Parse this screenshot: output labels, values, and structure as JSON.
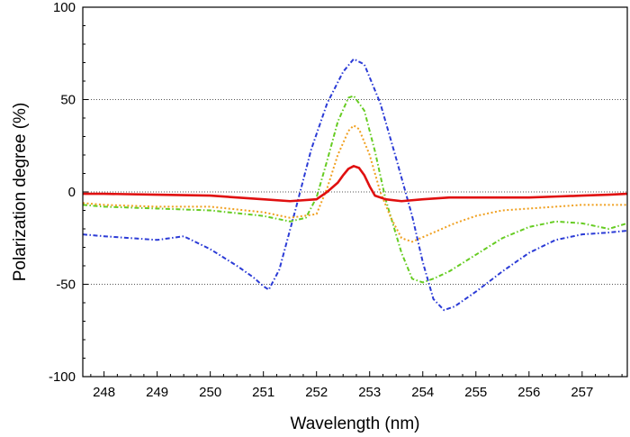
{
  "chart_data": {
    "type": "line",
    "title": "",
    "xlabel": "Wavelength (nm)",
    "ylabel": "Polarization degree (%)",
    "xlim": [
      247.6,
      257.85
    ],
    "ylim": [
      -100,
      100
    ],
    "xticks": [
      248,
      249,
      250,
      251,
      252,
      253,
      254,
      255,
      256,
      257
    ],
    "xtick_labels": [
      "248",
      "249",
      "250",
      "251",
      "252",
      "253",
      "254",
      "255",
      "256",
      "257"
    ],
    "yticks": [
      -100,
      -50,
      0,
      50,
      100
    ],
    "ytick_labels": [
      "-100",
      "-50",
      "0",
      "50",
      "100"
    ],
    "grid": "horizontal dotted lines at -50, 0 and 50",
    "legend": "none",
    "series": [
      {
        "color": "#2b3bd6",
        "style": "dash-dot",
        "x": [
          247.6,
          248.0,
          248.5,
          249.0,
          249.5,
          250.0,
          250.5,
          250.8,
          251.0,
          251.1,
          251.3,
          251.6,
          251.9,
          252.2,
          252.5,
          252.7,
          252.9,
          253.2,
          253.5,
          253.8,
          254.0,
          254.2,
          254.4,
          254.6,
          255.0,
          255.5,
          256.0,
          256.5,
          257.0,
          257.5,
          257.85
        ],
        "y": [
          -23,
          -24,
          -25,
          -26,
          -24,
          -31,
          -40,
          -46,
          -51,
          -53,
          -42,
          -10,
          23,
          48,
          65,
          72,
          69,
          48,
          18,
          -13,
          -38,
          -58,
          -64,
          -62,
          -54,
          -43,
          -33,
          -26,
          -23,
          -22,
          -21
        ]
      },
      {
        "color": "#66cc22",
        "style": "dash-dot",
        "x": [
          247.6,
          248.0,
          249.0,
          250.0,
          251.0,
          251.5,
          251.8,
          252.0,
          252.2,
          252.4,
          252.6,
          252.7,
          252.9,
          253.1,
          253.3,
          253.6,
          253.8,
          254.0,
          254.2,
          254.5,
          255.0,
          255.5,
          256.0,
          256.5,
          257.0,
          257.5,
          257.85
        ],
        "y": [
          -7,
          -8,
          -9,
          -10,
          -13,
          -16,
          -14,
          -3,
          17,
          38,
          51,
          52,
          44,
          22,
          -4,
          -33,
          -47,
          -49,
          -47,
          -43,
          -34,
          -25,
          -19,
          -16,
          -17,
          -20,
          -17
        ]
      },
      {
        "color": "#f0a020",
        "style": "dotted",
        "x": [
          247.6,
          248.0,
          249.0,
          250.0,
          251.0,
          251.5,
          252.0,
          252.2,
          252.4,
          252.6,
          252.7,
          252.8,
          253.0,
          253.2,
          253.4,
          253.6,
          253.8,
          254.2,
          254.6,
          255.0,
          255.5,
          256.0,
          256.5,
          257.0,
          257.5,
          257.85
        ],
        "y": [
          -6,
          -7,
          -8,
          -8,
          -11,
          -14,
          -12,
          2,
          20,
          33,
          36,
          34,
          20,
          0,
          -14,
          -25,
          -27,
          -22,
          -17,
          -13,
          -10,
          -9,
          -8,
          -7,
          -7,
          -7
        ]
      },
      {
        "color": "#e01010",
        "style": "solid",
        "x": [
          247.6,
          248.0,
          249.0,
          250.0,
          251.0,
          251.5,
          252.0,
          252.2,
          252.4,
          252.5,
          252.6,
          252.7,
          252.8,
          252.9,
          253.0,
          253.1,
          253.3,
          253.6,
          254.0,
          254.5,
          255.0,
          255.5,
          256.0,
          256.5,
          257.0,
          257.5,
          257.85
        ],
        "y": [
          -1,
          -1,
          -1.5,
          -2,
          -4,
          -5,
          -4,
          0,
          5,
          9,
          12.5,
          14,
          13,
          9,
          3,
          -2,
          -4,
          -5,
          -4,
          -3,
          -3,
          -3,
          -3,
          -2.5,
          -2,
          -1.5,
          -1
        ]
      }
    ]
  }
}
